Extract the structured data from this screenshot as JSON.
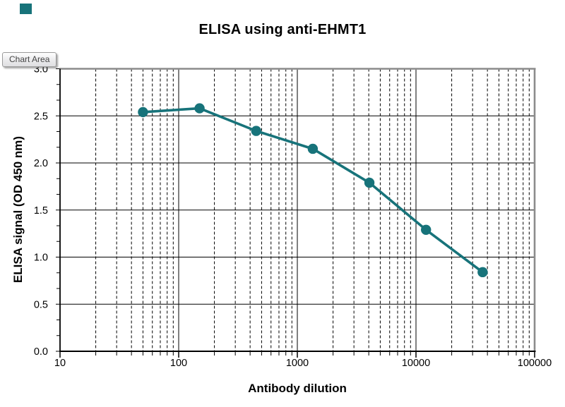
{
  "tooltip": {
    "label": "Chart Area"
  },
  "accent_color": "#17737A",
  "chart_data": {
    "type": "line",
    "title": "ELISA using anti-EHMT1",
    "xlabel": "Antibody dilution",
    "ylabel": "ELISA signal (OD 450 nm)",
    "x_scale": "log",
    "xlim": [
      10,
      100000
    ],
    "ylim": [
      0.0,
      3.0
    ],
    "x_tick_values": [
      10,
      100,
      1000,
      10000,
      100000
    ],
    "x_tick_labels": [
      "10",
      "100",
      "1000",
      "10000",
      "100000"
    ],
    "y_tick_values": [
      0.0,
      0.5,
      1.0,
      1.5,
      2.0,
      2.5,
      3.0
    ],
    "y_tick_labels": [
      "0.0",
      "0.5",
      "1.0",
      "1.5",
      "2.0",
      "2.5",
      "3.0"
    ],
    "grid": true,
    "legend": "none",
    "series": [
      {
        "color": "#17737A",
        "marker": "circle",
        "x": [
          50,
          150,
          450,
          1350,
          4050,
          12150,
          36450
        ],
        "y": [
          2.54,
          2.58,
          2.34,
          2.15,
          1.79,
          1.29,
          0.84
        ]
      }
    ]
  }
}
